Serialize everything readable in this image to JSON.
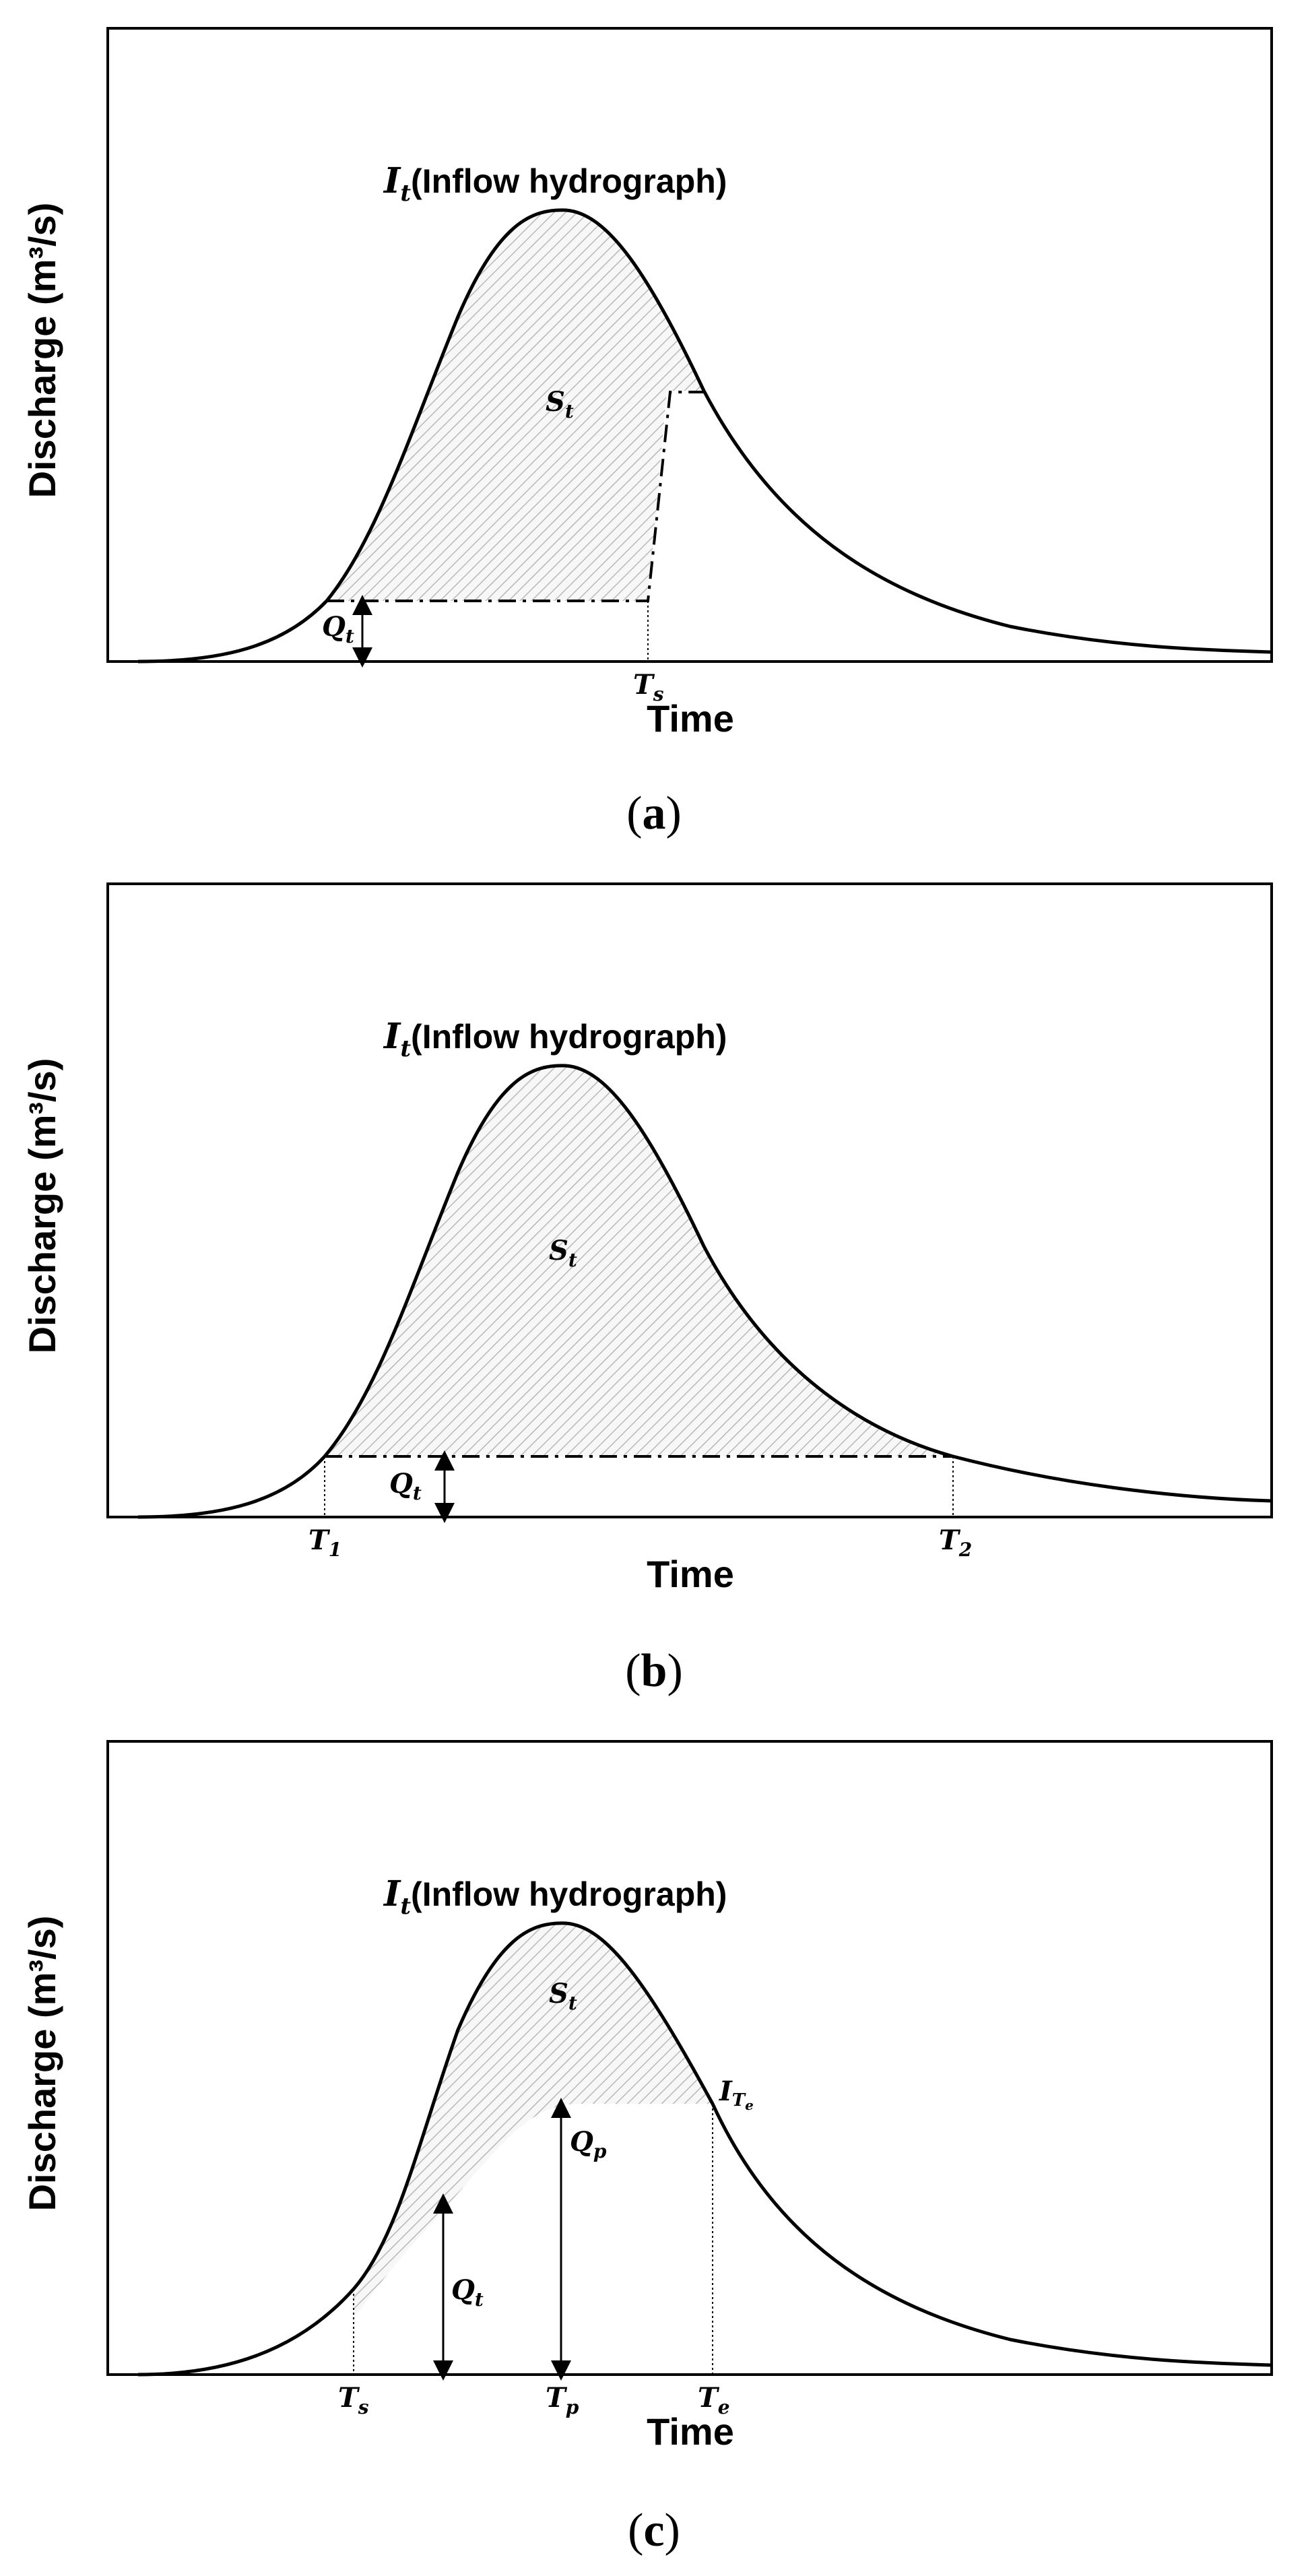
{
  "panels": [
    {
      "id": "a",
      "caption_letter": "a",
      "ylabel": "Discharge (m³/s)",
      "xlabel": "Time",
      "curve_title_var": "I",
      "curve_title_sub": "t",
      "curve_title_text": "(Inflow hydrograph)",
      "storage_var": "S",
      "storage_sub": "t",
      "q_var": "Q",
      "q_sub": "t",
      "t_labels": [
        {
          "var": "T",
          "sub": "s"
        }
      ]
    },
    {
      "id": "b",
      "caption_letter": "b",
      "ylabel": "Discharge (m³/s)",
      "xlabel": "Time",
      "curve_title_var": "I",
      "curve_title_sub": "t",
      "curve_title_text": "(Inflow hydrograph)",
      "storage_var": "S",
      "storage_sub": "t",
      "q_var": "Q",
      "q_sub": "t",
      "t_labels": [
        {
          "var": "T",
          "sub": "1"
        },
        {
          "var": "T",
          "sub": "2"
        }
      ]
    },
    {
      "id": "c",
      "caption_letter": "c",
      "ylabel": "Discharge (m³/s)",
      "xlabel": "Time",
      "curve_title_var": "I",
      "curve_title_sub": "t",
      "curve_title_text": "(Inflow hydrograph)",
      "storage_var": "S",
      "storage_sub": "t",
      "q_var": "Q",
      "q_sub": "t",
      "qp_var": "Q",
      "qp_sub": "p",
      "ite_var": "I",
      "ite_sub": "T",
      "ite_subsub": "e",
      "t_labels": [
        {
          "var": "T",
          "sub": "s"
        },
        {
          "var": "T",
          "sub": "p"
        },
        {
          "var": "T",
          "sub": "e"
        }
      ]
    }
  ]
}
